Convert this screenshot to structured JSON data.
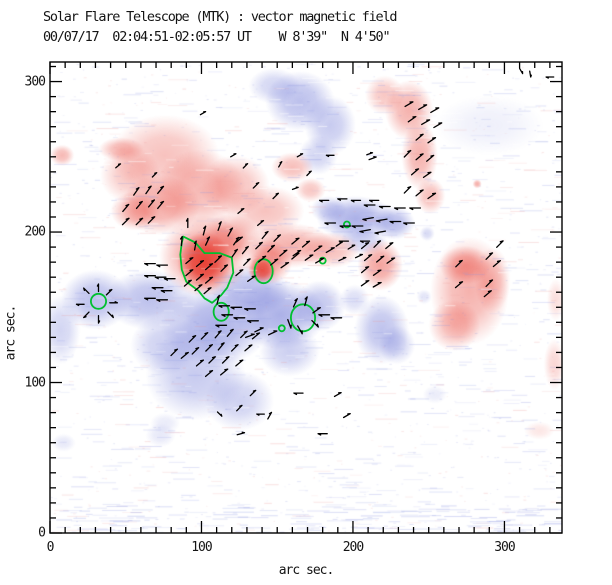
{
  "title": {
    "line1": "Solar Flare Telescope (MTK) : vector magnetic field",
    "line2": "00/07/17  02:04:51-02:05:57 UT    W 8'39\"  N 4'50\""
  },
  "colors": {
    "positive_polarity": "#e63428",
    "negative_polarity": "#5f69d2",
    "contour": "#00c030",
    "vector": "#000000",
    "axis": "#000000"
  },
  "chart_data": {
    "type": "heatmap",
    "title": "Solar Flare Telescope (MTK) : vector magnetic field",
    "subtitle": "00/07/17  02:04:51-02:05:57 UT    W 8'39\"  N 4'50\"",
    "xlabel": "arc sec.",
    "ylabel": "arc sec.",
    "xlim": [
      0,
      338
    ],
    "ylim": [
      0,
      313
    ],
    "x_ticks_major": [
      0,
      100,
      200,
      300
    ],
    "y_ticks_major": [
      0,
      100,
      200,
      300
    ],
    "minor_tick_step": 10,
    "grid": false,
    "legend": "none",
    "polarity_blobs_comment": "diffuse magnetogram patches: [x, y, rx, ry, intensity] in arc sec; pos=red, neg=blue",
    "blobs_positive": [
      [
        76,
        251,
        36,
        27,
        0.3
      ],
      [
        53,
        238,
        20,
        19,
        0.28
      ],
      [
        47,
        255,
        15,
        8,
        0.35
      ],
      [
        99,
        228,
        30,
        27,
        0.35
      ],
      [
        122,
        231,
        23,
        20,
        0.3
      ],
      [
        73,
        218,
        26,
        20,
        0.42
      ],
      [
        56,
        214,
        16,
        13,
        0.38
      ],
      [
        142,
        214,
        26,
        17,
        0.3
      ],
      [
        8,
        251,
        8,
        7,
        0.35
      ],
      [
        102,
        184,
        30,
        27,
        0.52
      ],
      [
        102,
        180,
        18,
        20,
        0.88
      ],
      [
        119,
        196,
        20,
        16,
        0.45
      ],
      [
        144,
        180,
        16,
        15,
        0.48
      ],
      [
        140,
        175,
        9,
        9,
        0.8
      ],
      [
        158,
        191,
        30,
        15,
        0.38
      ],
      [
        185,
        188,
        20,
        12,
        0.32
      ],
      [
        160,
        243,
        14,
        10,
        0.32
      ],
      [
        172,
        228,
        10,
        8,
        0.28
      ],
      [
        237,
        281,
        16,
        20,
        0.38
      ],
      [
        244,
        251,
        12,
        23,
        0.38
      ],
      [
        251,
        224,
        10,
        12,
        0.32
      ],
      [
        221,
        291,
        13,
        13,
        0.28
      ],
      [
        218,
        178,
        15,
        17,
        0.45
      ],
      [
        277,
        161,
        26,
        36,
        0.38
      ],
      [
        274,
        178,
        17,
        13,
        0.42
      ],
      [
        267,
        138,
        17,
        17,
        0.35
      ],
      [
        292,
        168,
        12,
        22,
        0.28
      ],
      [
        333,
        112,
        7,
        17,
        0.2
      ],
      [
        334,
        155,
        6,
        14,
        0.16
      ],
      [
        282,
        232,
        3,
        3,
        0.4
      ],
      [
        323,
        68,
        10,
        6,
        0.12
      ]
    ],
    "blobs_negative": [
      [
        165,
        287,
        23,
        20,
        0.42
      ],
      [
        185,
        271,
        17,
        20,
        0.35
      ],
      [
        148,
        297,
        17,
        12,
        0.28
      ],
      [
        177,
        251,
        13,
        13,
        0.28
      ],
      [
        290,
        271,
        36,
        20,
        0.1
      ],
      [
        202,
        209,
        26,
        15,
        0.52
      ],
      [
        227,
        206,
        14,
        11,
        0.45
      ],
      [
        184,
        215,
        12,
        9,
        0.32
      ],
      [
        207,
        194,
        16,
        9,
        0.3
      ],
      [
        30,
        155,
        23,
        20,
        0.42
      ],
      [
        7,
        135,
        13,
        23,
        0.28
      ],
      [
        66,
        155,
        30,
        20,
        0.42
      ],
      [
        109,
        138,
        36,
        27,
        0.52
      ],
      [
        152,
        145,
        30,
        23,
        0.52
      ],
      [
        178,
        151,
        17,
        17,
        0.38
      ],
      [
        132,
        161,
        26,
        17,
        0.45
      ],
      [
        96,
        105,
        33,
        30,
        0.35
      ],
      [
        125,
        88,
        23,
        20,
        0.3
      ],
      [
        158,
        121,
        20,
        17,
        0.32
      ],
      [
        76,
        125,
        23,
        20,
        0.32
      ],
      [
        219,
        135,
        18,
        23,
        0.4
      ],
      [
        229,
        125,
        12,
        13,
        0.3
      ],
      [
        201,
        155,
        10,
        10,
        0.22
      ],
      [
        249,
        199,
        5,
        5,
        0.25
      ],
      [
        247,
        157,
        5,
        5,
        0.18
      ],
      [
        73,
        65,
        10,
        8,
        0.15
      ],
      [
        9,
        60,
        8,
        6,
        0.15
      ],
      [
        76,
        73,
        10,
        7,
        0.13
      ],
      [
        254,
        92,
        8,
        6,
        0.13
      ]
    ],
    "contours_comment": "green contours in arc sec",
    "contour_polygons": [
      [
        [
          88,
          197
        ],
        [
          96,
          193
        ],
        [
          102,
          186
        ],
        [
          112,
          186
        ],
        [
          120,
          183
        ],
        [
          121,
          173
        ],
        [
          117,
          163
        ],
        [
          113,
          158
        ],
        [
          107,
          153
        ],
        [
          102,
          156
        ],
        [
          98,
          161
        ],
        [
          90,
          167
        ],
        [
          87,
          175
        ],
        [
          86,
          185
        ],
        [
          87,
          193
        ]
      ]
    ],
    "contour_ellipses": [
      [
        141,
        174,
        6,
        8
      ],
      [
        113,
        147,
        5,
        6
      ],
      [
        167,
        143,
        8,
        9
      ],
      [
        32,
        154,
        5,
        5
      ],
      [
        153,
        136,
        2,
        2
      ],
      [
        180,
        181,
        2,
        2
      ],
      [
        196,
        205,
        2,
        2
      ]
    ],
    "vectors_comment": "transverse field segments: [x, y, angle_deg_ccw, length] in arc sec",
    "vectors": [
      [
        50,
        207,
        45,
        6
      ],
      [
        59,
        207,
        45,
        6
      ],
      [
        67,
        208,
        45,
        6
      ],
      [
        50,
        216,
        50,
        6
      ],
      [
        59,
        218,
        50,
        6
      ],
      [
        67,
        219,
        50,
        6
      ],
      [
        57,
        227,
        55,
        6
      ],
      [
        65,
        228,
        55,
        6
      ],
      [
        73,
        228,
        50,
        6
      ],
      [
        73,
        218,
        50,
        6
      ],
      [
        45,
        244,
        40,
        4
      ],
      [
        69,
        238,
        45,
        4
      ],
      [
        91,
        206,
        90,
        6
      ],
      [
        102,
        201,
        75,
        6
      ],
      [
        112,
        204,
        70,
        6
      ],
      [
        119,
        200,
        60,
        6
      ],
      [
        123,
        194,
        55,
        6
      ],
      [
        129,
        188,
        50,
        6
      ],
      [
        104,
        194,
        65,
        6
      ],
      [
        96,
        191,
        80,
        6
      ],
      [
        87,
        194,
        85,
        6
      ],
      [
        92,
        181,
        40,
        6
      ],
      [
        99,
        179,
        40,
        6
      ],
      [
        105,
        177,
        40,
        6
      ],
      [
        92,
        173,
        40,
        6
      ],
      [
        99,
        170,
        40,
        6
      ],
      [
        105,
        168,
        40,
        6
      ],
      [
        98,
        163,
        40,
        6
      ],
      [
        104,
        161,
        40,
        6
      ],
      [
        91,
        166,
        40,
        6
      ],
      [
        111,
        182,
        45,
        6
      ],
      [
        115,
        176,
        45,
        6
      ],
      [
        122,
        186,
        55,
        6
      ],
      [
        130,
        180,
        45,
        6
      ],
      [
        125,
        173,
        40,
        6
      ],
      [
        133,
        169,
        35,
        6
      ],
      [
        66,
        179,
        180,
        7
      ],
      [
        74,
        178,
        180,
        7
      ],
      [
        66,
        171,
        180,
        7
      ],
      [
        73,
        170,
        180,
        7
      ],
      [
        79,
        169,
        180,
        7
      ],
      [
        71,
        163,
        180,
        7
      ],
      [
        77,
        161,
        180,
        7
      ],
      [
        66,
        156,
        180,
        7
      ],
      [
        74,
        155,
        180,
        7
      ],
      [
        138,
        191,
        45,
        6
      ],
      [
        146,
        189,
        45,
        6
      ],
      [
        154,
        186,
        40,
        6
      ],
      [
        140,
        182,
        40,
        6
      ],
      [
        148,
        180,
        40,
        6
      ],
      [
        155,
        178,
        35,
        6
      ],
      [
        162,
        184,
        40,
        6
      ],
      [
        142,
        198,
        50,
        6
      ],
      [
        150,
        196,
        45,
        6
      ],
      [
        162,
        194,
        40,
        6
      ],
      [
        169,
        192,
        40,
        6
      ],
      [
        177,
        189,
        35,
        6
      ],
      [
        163,
        186,
        35,
        6
      ],
      [
        171,
        183,
        35,
        6
      ],
      [
        178,
        181,
        30,
        6
      ],
      [
        185,
        188,
        30,
        6
      ],
      [
        191,
        192,
        35,
        5
      ],
      [
        199,
        190,
        30,
        5
      ],
      [
        204,
        184,
        25,
        5
      ],
      [
        193,
        182,
        25,
        5
      ],
      [
        125,
        195,
        40,
        5
      ],
      [
        115,
        151,
        180,
        7
      ],
      [
        123,
        150,
        180,
        7
      ],
      [
        132,
        149,
        180,
        7
      ],
      [
        117,
        145,
        180,
        7
      ],
      [
        125,
        143,
        180,
        7
      ],
      [
        134,
        141,
        180,
        7
      ],
      [
        113,
        138,
        180,
        7
      ],
      [
        111,
        155,
        75,
        6
      ],
      [
        162,
        153,
        65,
        6
      ],
      [
        169,
        154,
        75,
        6
      ],
      [
        176,
        148,
        35,
        6
      ],
      [
        175,
        139,
        315,
        6
      ],
      [
        165,
        135,
        300,
        6
      ],
      [
        158,
        139,
        290,
        6
      ],
      [
        181,
        145,
        180,
        7
      ],
      [
        189,
        143,
        180,
        7
      ],
      [
        138,
        135,
        25,
        6
      ],
      [
        132,
        131,
        20,
        6
      ],
      [
        147,
        133,
        25,
        6
      ],
      [
        94,
        129,
        45,
        6
      ],
      [
        102,
        131,
        45,
        6
      ],
      [
        111,
        132,
        50,
        6
      ],
      [
        119,
        133,
        50,
        6
      ],
      [
        128,
        132,
        45,
        6
      ],
      [
        136,
        131,
        40,
        6
      ],
      [
        96,
        121,
        45,
        6
      ],
      [
        105,
        123,
        45,
        6
      ],
      [
        113,
        124,
        50,
        6
      ],
      [
        122,
        123,
        45,
        6
      ],
      [
        131,
        123,
        40,
        6
      ],
      [
        99,
        113,
        40,
        6
      ],
      [
        107,
        115,
        45,
        6
      ],
      [
        116,
        115,
        45,
        6
      ],
      [
        125,
        113,
        40,
        6
      ],
      [
        105,
        106,
        40,
        6
      ],
      [
        115,
        107,
        40,
        6
      ],
      [
        89,
        118,
        40,
        6
      ],
      [
        82,
        120,
        45,
        6
      ],
      [
        164,
        93,
        180,
        6
      ],
      [
        190,
        92,
        30,
        5
      ],
      [
        196,
        78,
        30,
        5
      ],
      [
        145,
        78,
        60,
        5
      ],
      [
        180,
        66,
        180,
        6
      ],
      [
        125,
        83,
        45,
        5
      ],
      [
        134,
        93,
        45,
        5
      ],
      [
        112,
        79,
        315,
        4
      ],
      [
        139,
        79,
        180,
        5
      ],
      [
        126,
        66,
        15,
        5
      ],
      [
        32,
        163,
        90,
        5
      ],
      [
        39,
        160,
        45,
        5
      ],
      [
        42,
        153,
        0,
        5
      ],
      [
        40,
        145,
        315,
        5
      ],
      [
        32,
        142,
        270,
        5
      ],
      [
        24,
        145,
        225,
        5
      ],
      [
        20,
        152,
        180,
        5
      ],
      [
        24,
        161,
        135,
        5
      ],
      [
        185,
        206,
        180,
        7
      ],
      [
        195,
        204,
        180,
        7
      ],
      [
        203,
        204,
        180,
        7
      ],
      [
        211,
        218,
        180,
        7
      ],
      [
        221,
        217,
        180,
        7
      ],
      [
        231,
        216,
        180,
        7
      ],
      [
        241,
        216,
        180,
        7
      ],
      [
        210,
        209,
        190,
        7
      ],
      [
        219,
        208,
        190,
        7
      ],
      [
        228,
        207,
        180,
        7
      ],
      [
        237,
        206,
        180,
        7
      ],
      [
        208,
        201,
        190,
        7
      ],
      [
        218,
        200,
        190,
        7
      ],
      [
        181,
        221,
        180,
        6
      ],
      [
        193,
        222,
        180,
        6
      ],
      [
        202,
        221,
        180,
        6
      ],
      [
        214,
        221,
        180,
        6
      ],
      [
        194,
        194,
        180,
        6
      ],
      [
        208,
        194,
        180,
        6
      ],
      [
        237,
        285,
        30,
        6
      ],
      [
        246,
        283,
        30,
        6
      ],
      [
        254,
        281,
        30,
        6
      ],
      [
        239,
        275,
        35,
        6
      ],
      [
        248,
        273,
        30,
        6
      ],
      [
        256,
        271,
        30,
        6
      ],
      [
        244,
        263,
        40,
        6
      ],
      [
        252,
        261,
        35,
        6
      ],
      [
        236,
        252,
        45,
        6
      ],
      [
        244,
        250,
        40,
        6
      ],
      [
        251,
        249,
        40,
        6
      ],
      [
        241,
        240,
        40,
        6
      ],
      [
        249,
        238,
        35,
        6
      ],
      [
        236,
        228,
        45,
        6
      ],
      [
        244,
        226,
        40,
        6
      ],
      [
        252,
        224,
        35,
        6
      ],
      [
        208,
        191,
        40,
        6
      ],
      [
        216,
        192,
        45,
        6
      ],
      [
        224,
        191,
        40,
        6
      ],
      [
        210,
        183,
        40,
        6
      ],
      [
        218,
        182,
        40,
        6
      ],
      [
        225,
        181,
        35,
        6
      ],
      [
        208,
        175,
        40,
        6
      ],
      [
        216,
        173,
        35,
        6
      ],
      [
        208,
        166,
        35,
        6
      ],
      [
        216,
        165,
        30,
        6
      ],
      [
        297,
        192,
        45,
        6
      ],
      [
        290,
        184,
        45,
        6
      ],
      [
        295,
        179,
        40,
        6
      ],
      [
        270,
        179,
        45,
        6
      ],
      [
        270,
        165,
        40,
        6
      ],
      [
        290,
        166,
        45,
        6
      ],
      [
        289,
        159,
        40,
        6
      ],
      [
        311,
        307,
        300,
        4
      ],
      [
        317,
        305,
        280,
        4
      ],
      [
        330,
        303,
        180,
        5
      ],
      [
        121,
        251,
        30,
        4
      ],
      [
        165,
        251,
        30,
        4
      ],
      [
        101,
        279,
        30,
        4
      ],
      [
        211,
        252,
        20,
        4
      ],
      [
        152,
        245,
        60,
        4
      ],
      [
        185,
        251,
        180,
        5
      ],
      [
        213,
        249,
        20,
        5
      ],
      [
        129,
        244,
        45,
        4
      ],
      [
        136,
        231,
        45,
        5
      ],
      [
        149,
        224,
        45,
        5
      ],
      [
        126,
        214,
        40,
        5
      ],
      [
        139,
        206,
        40,
        5
      ],
      [
        162,
        229,
        20,
        4
      ],
      [
        171,
        239,
        45,
        4
      ]
    ]
  }
}
